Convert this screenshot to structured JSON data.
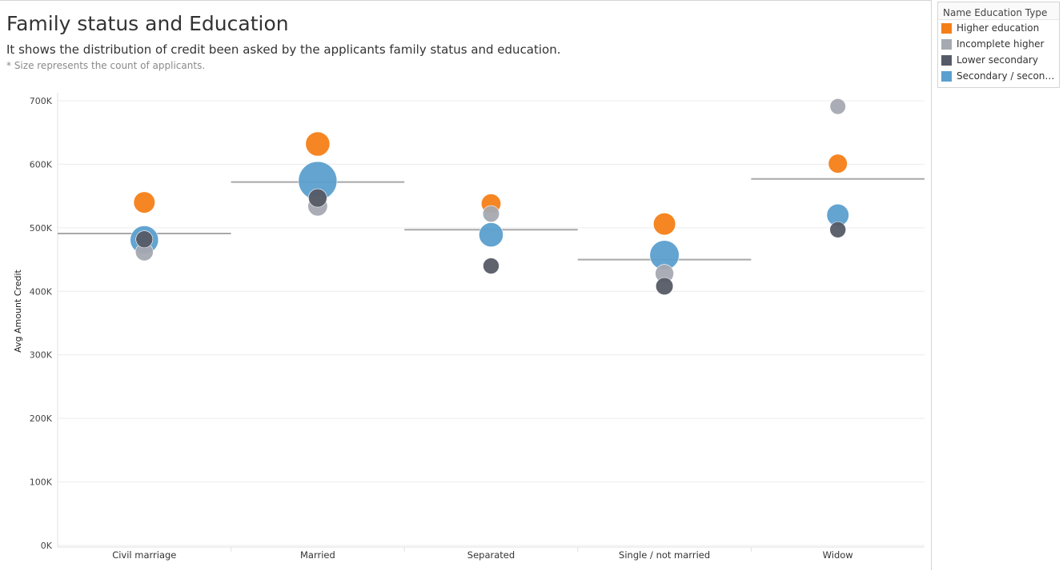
{
  "header": {
    "title": "Family status and Education",
    "subtitle": "It shows the distribution of credit been asked by the applicants family status and education.",
    "note": "* Size represents the count of applicants."
  },
  "legend": {
    "title": "Name Education Type",
    "items": [
      {
        "label": "Higher education",
        "color": "#f57f17"
      },
      {
        "label": "Incomplete higher",
        "color": "#a5a9b1"
      },
      {
        "label": "Lower secondary",
        "color": "#555b66"
      },
      {
        "label": "Secondary / seconda..",
        "color": "#5b9fcf"
      }
    ]
  },
  "chart_data": {
    "type": "scatter",
    "xlabel": "",
    "ylabel": "Avg Amount Credit",
    "categories": [
      "Civil marriage",
      "Married",
      "Separated",
      "Single / not married",
      "Widow"
    ],
    "ylim": [
      0,
      700000
    ],
    "yticks": [
      0,
      100000,
      200000,
      300000,
      400000,
      500000,
      600000,
      700000
    ],
    "ytick_labels": [
      "0K",
      "100K",
      "200K",
      "300K",
      "400K",
      "500K",
      "600K",
      "700K"
    ],
    "grid": true,
    "size_encoding": "count of applicants",
    "series": [
      {
        "name": "Higher education",
        "color": "#f57f17",
        "values": [
          540000,
          632000,
          538000,
          506000,
          601000
        ],
        "relative_size": [
          0.25,
          0.35,
          0.2,
          0.28,
          0.18
        ]
      },
      {
        "name": "Incomplete higher",
        "color": "#a5a9b1",
        "values": [
          462000,
          534000,
          522000,
          428000,
          691000
        ],
        "relative_size": [
          0.15,
          0.2,
          0.12,
          0.17,
          0.1
        ]
      },
      {
        "name": "Lower secondary",
        "color": "#555b66",
        "values": [
          482000,
          547000,
          440000,
          408000,
          497000
        ],
        "relative_size": [
          0.13,
          0.17,
          0.11,
          0.14,
          0.11
        ]
      },
      {
        "name": "Secondary / secondary special",
        "color": "#5b9fcf",
        "values": [
          481000,
          574000,
          489000,
          457000,
          520000
        ],
        "relative_size": [
          0.5,
          1.0,
          0.35,
          0.55,
          0.28
        ]
      }
    ],
    "reference_lines": [
      491000,
      572000,
      497000,
      450000,
      577000
    ]
  }
}
